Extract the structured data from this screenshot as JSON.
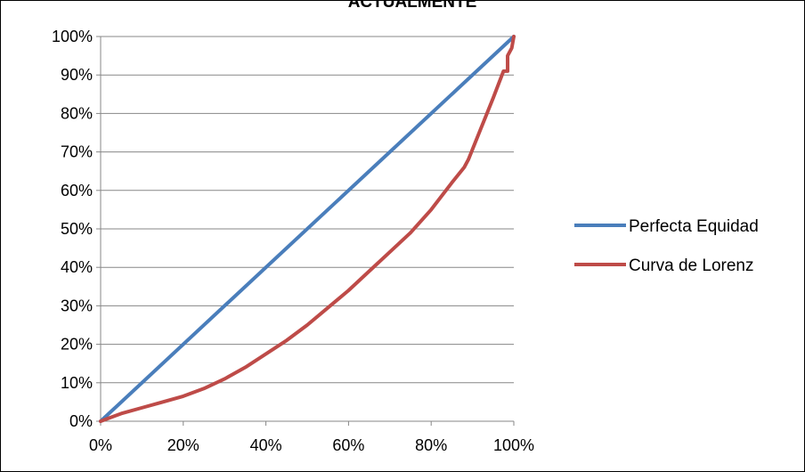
{
  "chart_data": {
    "type": "line",
    "title": "ACTUALMENTE",
    "xlabel": "",
    "ylabel": "",
    "xlim": [
      0,
      100
    ],
    "ylim": [
      0,
      100
    ],
    "x_ticks": [
      "0%",
      "20%",
      "40%",
      "60%",
      "80%",
      "100%"
    ],
    "y_ticks": [
      "0%",
      "10%",
      "20%",
      "30%",
      "40%",
      "50%",
      "60%",
      "70%",
      "80%",
      "90%",
      "100%"
    ],
    "grid": "horizontal",
    "legend_position": "right",
    "series": [
      {
        "name": "Perfecta Equidad",
        "color": "#4a7ebb",
        "points": [
          [
            0,
            0
          ],
          [
            100,
            100
          ]
        ]
      },
      {
        "name": "Curva de Lorenz",
        "color": "#be4b48",
        "points": [
          [
            0,
            0
          ],
          [
            5,
            2
          ],
          [
            10,
            3.5
          ],
          [
            15,
            5
          ],
          [
            20,
            6.5
          ],
          [
            25,
            8.5
          ],
          [
            30,
            11
          ],
          [
            35,
            14
          ],
          [
            40,
            17.5
          ],
          [
            45,
            21
          ],
          [
            50,
            25
          ],
          [
            55,
            29.5
          ],
          [
            60,
            34
          ],
          [
            65,
            39
          ],
          [
            70,
            44
          ],
          [
            75,
            49
          ],
          [
            80,
            55
          ],
          [
            85,
            62
          ],
          [
            88,
            66
          ],
          [
            89,
            68
          ],
          [
            92,
            76
          ],
          [
            95,
            84
          ],
          [
            97.5,
            91
          ],
          [
            98.5,
            91
          ],
          [
            98.5,
            95
          ],
          [
            99.5,
            97
          ],
          [
            100,
            100
          ]
        ]
      }
    ]
  }
}
